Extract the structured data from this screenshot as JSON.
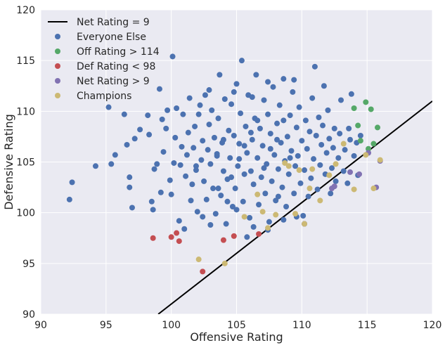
{
  "chart_data": {
    "type": "scatter",
    "xlabel": "Offensive Rating",
    "ylabel": "Defensive Rating",
    "xlim": [
      90,
      120
    ],
    "ylim": [
      90,
      120
    ],
    "x_ticks": [
      "90",
      "95",
      "100",
      "105",
      "110",
      "115",
      "120"
    ],
    "y_ticks": [
      "90",
      "95",
      "100",
      "105",
      "110",
      "115",
      "120"
    ],
    "grid": true,
    "legend_position": "top-left",
    "background_color": "#eaeaf2",
    "reference_line": {
      "name": "Net Rating = 9",
      "color": "#000000",
      "points": [
        [
          99,
          90
        ],
        [
          120,
          111
        ]
      ]
    },
    "series": [
      {
        "name": "Everyone Else",
        "color": "#4c72b0",
        "points": [
          [
            92.2,
            101.3
          ],
          [
            92.4,
            103
          ],
          [
            94.2,
            104.6
          ],
          [
            95.2,
            110.4
          ],
          [
            95.4,
            104.8
          ],
          [
            95.7,
            105.7
          ],
          [
            96.4,
            109.7
          ],
          [
            96.6,
            106.7
          ],
          [
            96.8,
            103.5
          ],
          [
            96.8,
            102.5
          ],
          [
            97,
            100.5
          ],
          [
            97.2,
            107.3
          ],
          [
            97.6,
            108.2
          ],
          [
            98.2,
            109.6
          ],
          [
            98.3,
            107.7
          ],
          [
            98.5,
            101.1
          ],
          [
            98.6,
            100.3
          ],
          [
            98.7,
            104.3
          ],
          [
            98.9,
            104.8
          ],
          [
            99.1,
            112.2
          ],
          [
            99.2,
            102
          ],
          [
            99.3,
            109.2
          ],
          [
            99.4,
            106
          ],
          [
            99.6,
            108.3
          ],
          [
            99.7,
            110.1
          ],
          [
            99.9,
            103.2
          ],
          [
            100,
            101.8
          ],
          [
            100.1,
            115.4
          ],
          [
            100.2,
            104.9
          ],
          [
            100.3,
            107.4
          ],
          [
            100.4,
            110.3
          ],
          [
            100.6,
            99.2
          ],
          [
            100.7,
            104.7
          ],
          [
            100.8,
            106.5
          ],
          [
            100.9,
            109.7
          ],
          [
            101,
            98.4
          ],
          [
            101.1,
            103.6
          ],
          [
            101.2,
            105.7
          ],
          [
            101.3,
            107.9
          ],
          [
            101.4,
            111.3
          ],
          [
            101.5,
            101.2
          ],
          [
            101.6,
            102.8
          ],
          [
            101.7,
            106.4
          ],
          [
            101.8,
            108.5
          ],
          [
            101.9,
            104.2
          ],
          [
            102,
            100.1
          ],
          [
            102.1,
            109.7
          ],
          [
            102.2,
            110.6
          ],
          [
            102.3,
            105.2
          ],
          [
            102.4,
            107.1
          ],
          [
            102.5,
            103.1
          ],
          [
            102.6,
            111.6
          ],
          [
            102.7,
            101.3
          ],
          [
            102.8,
            106.2
          ],
          [
            102.9,
            108.7
          ],
          [
            103,
            104.8
          ],
          [
            103.1,
            110.1
          ],
          [
            103.2,
            102.4
          ],
          [
            103.3,
            107.4
          ],
          [
            103.4,
            99.9
          ],
          [
            103.5,
            105.8
          ],
          [
            103.6,
            109.3
          ],
          [
            103.7,
            113.6
          ],
          [
            103.8,
            101.7
          ],
          [
            103.9,
            106.9
          ],
          [
            104,
            104.1
          ],
          [
            104.1,
            111.2
          ],
          [
            104.2,
            98.9
          ],
          [
            104.3,
            103.3
          ],
          [
            104.4,
            108.1
          ],
          [
            104.5,
            105.4
          ],
          [
            104.6,
            110.7
          ],
          [
            104.7,
            100.6
          ],
          [
            104.8,
            107.6
          ],
          [
            104.9,
            102.4
          ],
          [
            105,
            112.7
          ],
          [
            105.1,
            104.6
          ],
          [
            105.2,
            106.8
          ],
          [
            105.3,
            109.8
          ],
          [
            105.4,
            115
          ],
          [
            105.5,
            101.1
          ],
          [
            105.6,
            103.8
          ],
          [
            105.7,
            108.5
          ],
          [
            105.8,
            105.9
          ],
          [
            105.9,
            111.6
          ],
          [
            106,
            99.5
          ],
          [
            106.1,
            104.1
          ],
          [
            106.2,
            107.2
          ],
          [
            106.3,
            102.8
          ],
          [
            106.4,
            109.3
          ],
          [
            106.5,
            113.6
          ],
          [
            106.6,
            105.4
          ],
          [
            106.7,
            100.8
          ],
          [
            106.8,
            108.3
          ],
          [
            106.9,
            103.5
          ],
          [
            107,
            106.6
          ],
          [
            107.1,
            111.1
          ],
          [
            107.2,
            101.9
          ],
          [
            107.3,
            104.8
          ],
          [
            107.4,
            109.7
          ],
          [
            107.5,
            99.1
          ],
          [
            107.6,
            107.8
          ],
          [
            107.7,
            103.1
          ],
          [
            107.8,
            112.4
          ],
          [
            107.9,
            105.7
          ],
          [
            108,
            101.2
          ],
          [
            108.1,
            108.8
          ],
          [
            108.2,
            104.3
          ],
          [
            108.3,
            110.6
          ],
          [
            108.4,
            106.9
          ],
          [
            108.5,
            102.5
          ],
          [
            108.6,
            113.2
          ],
          [
            108.7,
            105.1
          ],
          [
            108.8,
            100.6
          ],
          [
            108.9,
            107.5
          ],
          [
            109,
            103.8
          ],
          [
            109.1,
            109.6
          ],
          [
            109.2,
            106.1
          ],
          [
            109.3,
            111.9
          ],
          [
            109.4,
            101.9
          ],
          [
            109.5,
            104.6
          ],
          [
            109.6,
            108.4
          ],
          [
            109.7,
            105.6
          ],
          [
            109.8,
            110.4
          ],
          [
            109.9,
            102.9
          ],
          [
            110,
            107.1
          ],
          [
            110.1,
            99.7
          ],
          [
            110.2,
            104.2
          ],
          [
            110.3,
            109.1
          ],
          [
            110.4,
            106.3
          ],
          [
            110.5,
            101.6
          ],
          [
            110.6,
            108
          ],
          [
            110.7,
            103.4
          ],
          [
            110.8,
            111.3
          ],
          [
            110.9,
            105.3
          ],
          [
            111,
            114.4
          ],
          [
            111.1,
            107.6
          ],
          [
            111.2,
            102.3
          ],
          [
            111.3,
            109.4
          ],
          [
            111.4,
            104.7
          ],
          [
            111.5,
            106.7
          ],
          [
            111.6,
            108.6
          ],
          [
            111.7,
            112.5
          ],
          [
            111.8,
            103.8
          ],
          [
            111.9,
            105.9
          ],
          [
            112,
            110.1
          ],
          [
            112.1,
            107.3
          ],
          [
            112.2,
            101.9
          ],
          [
            112.3,
            104.4
          ],
          [
            112.4,
            106.4
          ],
          [
            112.5,
            108.3
          ],
          [
            112.6,
            103.1
          ],
          [
            112.8,
            105.4
          ],
          [
            112.9,
            107.8
          ],
          [
            113,
            111.1
          ],
          [
            113.2,
            104.1
          ],
          [
            113.3,
            106.2
          ],
          [
            113.5,
            102.9
          ],
          [
            113.6,
            108.3
          ],
          [
            113.7,
            107.2
          ],
          [
            113.8,
            111.7
          ],
          [
            114,
            105.6
          ],
          [
            114.2,
            106.9
          ],
          [
            114.3,
            103.7
          ],
          [
            114.5,
            107.6
          ],
          [
            105.2,
            105.3
          ],
          [
            105.6,
            106.6
          ],
          [
            106.1,
            107.9
          ],
          [
            106.6,
            109.1
          ],
          [
            107.1,
            104.4
          ],
          [
            107.6,
            106.3
          ],
          [
            108.1,
            107.2
          ],
          [
            108.6,
            109.1
          ],
          [
            109.1,
            105.4
          ],
          [
            103.5,
            105.6
          ],
          [
            104,
            107.2
          ],
          [
            104.6,
            103.5
          ],
          [
            105,
            100.3
          ],
          [
            103,
            98.8
          ],
          [
            106.3,
            98.6
          ],
          [
            107.4,
            98.3
          ],
          [
            108.6,
            99.3
          ],
          [
            105.8,
            97.6
          ],
          [
            109.6,
            99.6
          ],
          [
            110.2,
            98.9
          ],
          [
            102.4,
            99.6
          ],
          [
            101.9,
            104.6
          ],
          [
            102.9,
            112.1
          ],
          [
            104.8,
            111.9
          ],
          [
            106.2,
            111.4
          ],
          [
            107.4,
            112.9
          ],
          [
            109.4,
            113.1
          ],
          [
            103.6,
            102.4
          ],
          [
            104.3,
            101.1
          ],
          [
            108.2,
            101.6
          ]
        ]
      },
      {
        "name": "Off Rating > 114",
        "color": "#55a868",
        "points": [
          [
            114,
            110.3
          ],
          [
            114.3,
            108.6
          ],
          [
            114.5,
            107.1
          ],
          [
            114.9,
            110.9
          ],
          [
            115.1,
            106.3
          ],
          [
            115.3,
            110.2
          ],
          [
            115.5,
            106.8
          ],
          [
            115.8,
            108.4
          ]
        ]
      },
      {
        "name": "Def Rating < 98",
        "color": "#c44e52",
        "points": [
          [
            98.6,
            97.5
          ],
          [
            100,
            97.6
          ],
          [
            100.4,
            98
          ],
          [
            100.6,
            97.2
          ],
          [
            102.4,
            94.2
          ],
          [
            104,
            97.3
          ],
          [
            104.8,
            97.7
          ],
          [
            106.7,
            97.9
          ]
        ]
      },
      {
        "name": "Net Rating > 9",
        "color": "#8172b2",
        "points": [
          [
            110.2,
            98.9
          ],
          [
            112.3,
            102.4
          ],
          [
            112.5,
            102.6
          ],
          [
            113.7,
            104
          ],
          [
            114.4,
            103.8
          ],
          [
            115.1,
            105.9
          ],
          [
            115.7,
            102.5
          ],
          [
            116,
            105.1
          ]
        ]
      },
      {
        "name": "Champions",
        "color": "#ccb974",
        "points": [
          [
            102.1,
            95.4
          ],
          [
            104.1,
            95
          ],
          [
            105.6,
            99.6
          ],
          [
            106.6,
            101.8
          ],
          [
            107,
            100.1
          ],
          [
            107.4,
            98.5
          ],
          [
            108,
            99.8
          ],
          [
            108.7,
            104.9
          ],
          [
            109,
            104.6
          ],
          [
            109.5,
            99.9
          ],
          [
            109.8,
            104.2
          ],
          [
            110.2,
            98.9
          ],
          [
            110.6,
            102.4
          ],
          [
            110.8,
            104.3
          ],
          [
            111.4,
            101.2
          ],
          [
            112.1,
            103.7
          ],
          [
            112.6,
            104.8
          ],
          [
            113.2,
            106.8
          ],
          [
            114,
            102.3
          ],
          [
            114.9,
            105.7
          ],
          [
            115.5,
            102.4
          ],
          [
            116,
            105.2
          ]
        ]
      }
    ]
  }
}
